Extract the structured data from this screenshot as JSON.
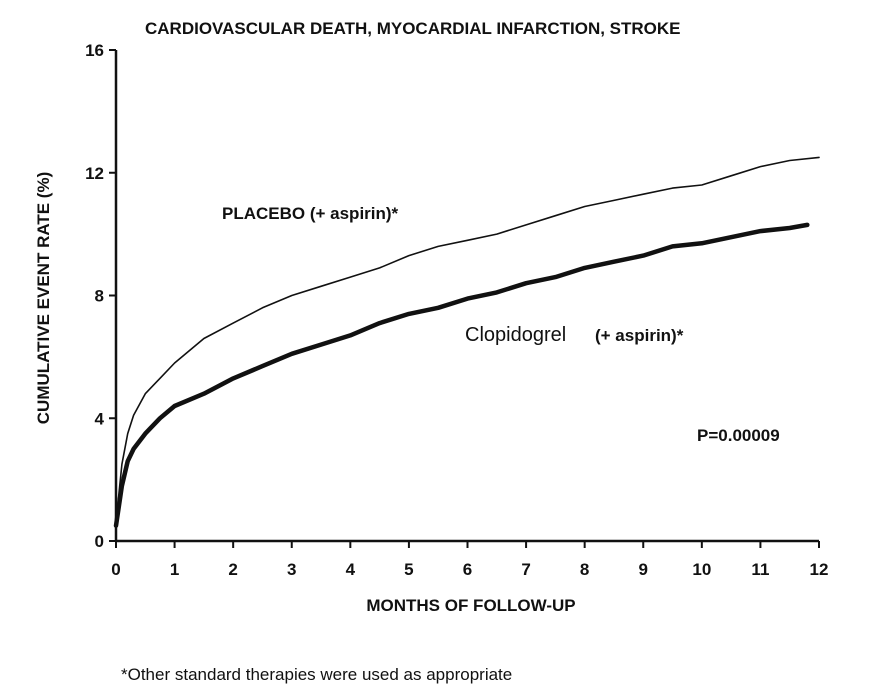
{
  "chart_data": {
    "type": "line",
    "title": "CARDIOVASCULAR DEATH, MYOCARDIAL INFARCTION, STROKE",
    "xlabel": "MONTHS OF FOLLOW-UP",
    "ylabel": "CUMULATIVE EVENT RATE (%)",
    "xlim": [
      0,
      12
    ],
    "ylim": [
      0,
      16
    ],
    "x_ticks": [
      "0",
      "1",
      "2",
      "3",
      "4",
      "5",
      "6",
      "7",
      "8",
      "9",
      "10",
      "11",
      "12"
    ],
    "y_ticks": [
      "0",
      "4",
      "8",
      "12",
      "16"
    ],
    "grid": false,
    "series": [
      {
        "name": "PLACEBO (+ aspirin)*",
        "color": "#111111",
        "style": "thin",
        "x": [
          0,
          0.1,
          0.2,
          0.3,
          0.5,
          0.75,
          1,
          1.5,
          2,
          2.5,
          3,
          3.5,
          4,
          4.5,
          5,
          5.5,
          6,
          6.5,
          7,
          7.5,
          8,
          8.5,
          9,
          9.5,
          10,
          10.5,
          11,
          11.5,
          12
        ],
        "y": [
          0.6,
          2.5,
          3.5,
          4.1,
          4.8,
          5.3,
          5.8,
          6.6,
          7.1,
          7.6,
          8.0,
          8.3,
          8.6,
          8.9,
          9.3,
          9.6,
          9.8,
          10.0,
          10.3,
          10.6,
          10.9,
          11.1,
          11.3,
          11.5,
          11.6,
          11.9,
          12.2,
          12.4,
          12.5
        ]
      },
      {
        "name": "Clopidogrel (+ aspirin)*",
        "color": "#111111",
        "style": "thick",
        "x": [
          0,
          0.1,
          0.2,
          0.3,
          0.5,
          0.75,
          1,
          1.5,
          2,
          2.5,
          3,
          3.5,
          4,
          4.5,
          5,
          5.5,
          6,
          6.5,
          7,
          7.5,
          8,
          8.5,
          9,
          9.5,
          10,
          10.5,
          11,
          11.5,
          11.8
        ],
        "y": [
          0.5,
          1.8,
          2.6,
          3.0,
          3.5,
          4.0,
          4.4,
          4.8,
          5.3,
          5.7,
          6.1,
          6.4,
          6.7,
          7.1,
          7.4,
          7.6,
          7.9,
          8.1,
          8.4,
          8.6,
          8.9,
          9.1,
          9.3,
          9.6,
          9.7,
          9.9,
          10.1,
          10.2,
          10.3
        ]
      }
    ],
    "annotations": [
      {
        "text": "PLACEBO (+ aspirin)*"
      },
      {
        "text": "Clopidogrel"
      },
      {
        "text": "(+ aspirin)*"
      },
      {
        "text": "P=0.00009"
      }
    ]
  },
  "footnote": "*Other standard therapies were used as appropriate"
}
